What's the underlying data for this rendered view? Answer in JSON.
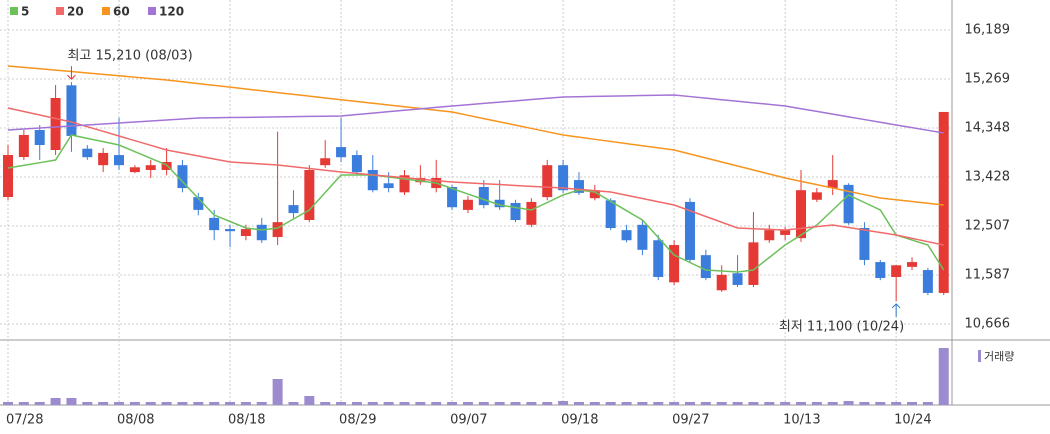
{
  "chart_data": {
    "type": "candlestick",
    "categories": [
      "07/28",
      null,
      null,
      null,
      null,
      null,
      null,
      "08/08",
      null,
      null,
      null,
      null,
      null,
      null,
      "08/18",
      null,
      null,
      null,
      null,
      null,
      null,
      "08/29",
      null,
      null,
      null,
      null,
      null,
      null,
      "09/07",
      null,
      null,
      null,
      null,
      null,
      null,
      "09/18",
      null,
      null,
      null,
      null,
      null,
      null,
      "09/27",
      null,
      null,
      null,
      null,
      null,
      null,
      "10/13",
      null,
      null,
      null,
      null,
      null,
      null,
      "10/24",
      null,
      null,
      null
    ],
    "open": [
      13052,
      13803,
      14311,
      13935,
      15150,
      13960,
      13650,
      13840,
      13520,
      13560,
      13560,
      13650,
      13050,
      12660,
      12450,
      12320,
      12530,
      12300,
      12900,
      12620,
      13650,
      13990,
      13840,
      13560,
      13310,
      13140,
      13330,
      13220,
      13240,
      12810,
      13240,
      13000,
      12940,
      12530,
      13050,
      13650,
      13370,
      13030,
      12990,
      12430,
      12530,
      12240,
      11450,
      12960,
      11960,
      11300,
      11620,
      11400,
      12240,
      12340,
      12280,
      13000,
      13220,
      13280,
      12470,
      11830,
      11550,
      11740,
      11680,
      11250
    ],
    "high": [
      14029,
      14311,
      14404,
      15156,
      15210,
      14030,
      13970,
      14540,
      13650,
      13750,
      13970,
      13750,
      13130,
      12810,
      12530,
      12530,
      12660,
      14280,
      13180,
      13650,
      14120,
      14540,
      13930,
      13840,
      13520,
      13560,
      13650,
      13750,
      13280,
      13070,
      13370,
      13370,
      13000,
      13030,
      13750,
      13750,
      13520,
      13280,
      13030,
      12530,
      12620,
      12340,
      12240,
      13030,
      12060,
      11770,
      11960,
      12770,
      12530,
      12490,
      13560,
      13220,
      13840,
      13310,
      12580,
      11870,
      11770,
      11920,
      11720,
      14650
    ],
    "low": [
      12996,
      13747,
      13747,
      13841,
      13900,
      13750,
      13520,
      13560,
      13500,
      13410,
      13460,
      13140,
      12710,
      12240,
      12110,
      12240,
      12190,
      12150,
      12660,
      12580,
      13600,
      13710,
      13460,
      13140,
      13140,
      13090,
      13280,
      13140,
      12810,
      12750,
      12840,
      12810,
      12580,
      12490,
      12990,
      13130,
      13090,
      12990,
      12430,
      12200,
      11960,
      11490,
      11400,
      11830,
      11490,
      11270,
      11360,
      11360,
      12190,
      12240,
      12210,
      12960,
      13090,
      12530,
      11770,
      11490,
      11100,
      11680,
      11210,
      11210
    ],
    "close": [
      13841,
      14217,
      14029,
      14912,
      14200,
      13800,
      13880,
      13650,
      13610,
      13650,
      13710,
      13220,
      12810,
      12430,
      12410,
      12450,
      12240,
      12580,
      12750,
      13560,
      13780,
      13800,
      13520,
      13180,
      13220,
      13460,
      13410,
      13410,
      12860,
      13000,
      12900,
      12860,
      12620,
      12960,
      13650,
      13180,
      13130,
      13180,
      12470,
      12240,
      12060,
      11550,
      12150,
      11870,
      11530,
      11590,
      11400,
      12200,
      12430,
      12430,
      13180,
      13140,
      13370,
      12560,
      11870,
      11530,
      11770,
      11830,
      11250,
      14650
    ],
    "up_color": "#e53935",
    "down_color": "#3b7ddd",
    "moving_averages": [
      {
        "name": "5",
        "color": "#6cc15a",
        "values": [
          13597,
          13647,
          13697,
          13747,
          14217,
          14154,
          14092,
          14029,
          13904,
          13779,
          13654,
          13341,
          13027,
          12714,
          12592,
          12470,
          12432,
          12470,
          12639,
          12808,
          13137,
          13466,
          13466,
          13466,
          13428,
          13390,
          13353,
          13315,
          13212,
          13108,
          13005,
          12902,
          12855,
          12808,
          12949,
          13090,
          13184,
          13146,
          12971,
          12795,
          12620,
          12291,
          11962,
          11822,
          11681,
          11662,
          11643,
          11681,
          11916,
          12150,
          12338,
          12526,
          12808,
          13090,
          12949,
          12808,
          12338,
          12244,
          12150,
          11681
        ]
      },
      {
        "name": "20",
        "color": "#f06a6a",
        "values": [
          14725,
          14659,
          14593,
          14527,
          14461,
          14373,
          14286,
          14198,
          14110,
          14023,
          13935,
          13879,
          13823,
          13766,
          13710,
          13691,
          13673,
          13654,
          13621,
          13588,
          13555,
          13522,
          13495,
          13468,
          13441,
          13415,
          13388,
          13361,
          13334,
          13318,
          13302,
          13286,
          13269,
          13253,
          13237,
          13221,
          13196,
          13171,
          13146,
          13085,
          13024,
          12963,
          12902,
          12794,
          12686,
          12578,
          12470,
          12457,
          12445,
          12432,
          12463,
          12495,
          12526,
          12479,
          12432,
          12385,
          12338,
          12275,
          12213,
          12150
        ]
      },
      {
        "name": "60",
        "color": "#f7941d",
        "values": [
          15514,
          15488,
          15461,
          15435,
          15409,
          15382,
          15356,
          15330,
          15303,
          15277,
          15251,
          15217,
          15183,
          15150,
          15116,
          15082,
          15048,
          15014,
          14981,
          14947,
          14913,
          14880,
          14847,
          14814,
          14781,
          14748,
          14715,
          14682,
          14649,
          14587,
          14525,
          14464,
          14402,
          14340,
          14279,
          14217,
          14177,
          14136,
          14096,
          14056,
          14015,
          13975,
          13935,
          13860,
          13785,
          13710,
          13634,
          13559,
          13484,
          13409,
          13346,
          13284,
          13221,
          13158,
          13096,
          13033,
          13000,
          12967,
          12935,
          12902
        ]
      },
      {
        "name": "120",
        "color": "#a374d6",
        "values": [
          14311,
          14330,
          14349,
          14367,
          14386,
          14405,
          14424,
          14443,
          14462,
          14480,
          14499,
          14518,
          14537,
          14541,
          14545,
          14549,
          14553,
          14558,
          14562,
          14566,
          14570,
          14574,
          14601,
          14628,
          14655,
          14682,
          14708,
          14735,
          14762,
          14786,
          14810,
          14834,
          14858,
          14883,
          14907,
          14931,
          14936,
          14942,
          14947,
          14953,
          14958,
          14964,
          14969,
          14939,
          14910,
          14880,
          14851,
          14821,
          14792,
          14762,
          14711,
          14660,
          14609,
          14558,
          14507,
          14456,
          14405,
          14355,
          14305,
          14255
        ]
      }
    ],
    "volume": {
      "name": "거래량",
      "color": "#9c8ccf",
      "values": [
        3,
        3,
        3,
        7,
        7,
        3,
        3,
        3,
        3,
        3,
        3,
        3,
        3,
        3,
        3,
        3,
        3,
        26,
        3,
        9,
        3,
        3,
        3,
        3,
        3,
        3,
        3,
        3,
        3,
        3,
        3,
        3,
        3,
        3,
        3,
        4,
        3,
        3,
        3,
        3,
        3,
        3,
        3,
        3,
        3,
        3,
        3,
        3,
        3,
        3,
        3,
        3,
        3,
        4,
        3,
        3,
        3,
        3,
        3,
        57
      ]
    },
    "volume_ylim": [
      0,
      60
    ],
    "annotations": [
      {
        "text": "최고 15,210 (08/03)",
        "color": "#e53935"
      },
      {
        "text": "최저 11,100 (10/24)",
        "color": "#2f74c9"
      }
    ],
    "ylim": [
      10366,
      16490
    ],
    "yticks": [
      {
        "value": 10666,
        "label": "10,666"
      },
      {
        "value": 11587,
        "label": "11,587"
      },
      {
        "value": 12507,
        "label": "12,507"
      },
      {
        "value": 13428,
        "label": "13,428"
      },
      {
        "value": 14348,
        "label": "14,348"
      },
      {
        "value": 15269,
        "label": "15,269"
      },
      {
        "value": 16189,
        "label": "16,189"
      }
    ],
    "grid": true
  }
}
